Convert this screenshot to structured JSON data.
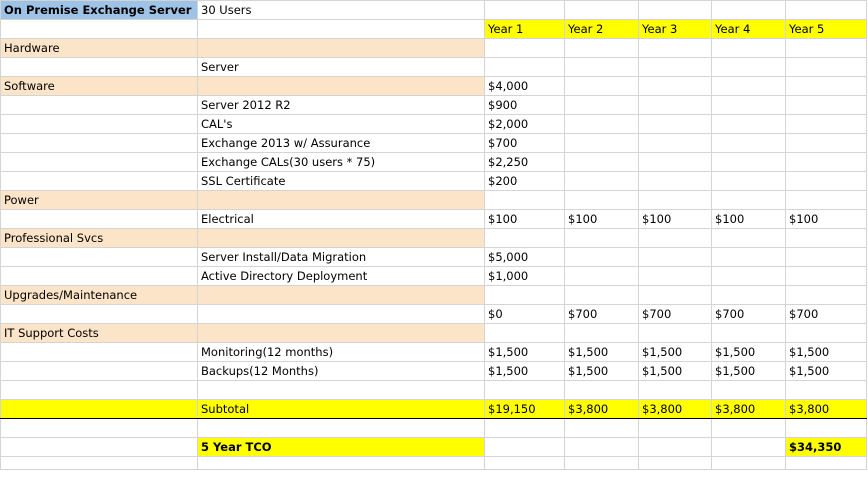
{
  "sheet": {
    "title": "On Premise Exchange Server",
    "users": "30 Users",
    "years": [
      "Year 1",
      "Year 2",
      "Year 3",
      "Year 4",
      "Year 5"
    ],
    "sections": {
      "hardware": "Hardware",
      "software": "Software",
      "power": "Power",
      "professional": "Professional Svcs",
      "upgrades": "Upgrades/Maintenance",
      "it_support": "IT Support Costs"
    },
    "items": {
      "server": "Server",
      "server2012": "Server 2012 R2",
      "cals": "CAL's",
      "exchange2013": "Exchange 2013 w/ Assurance",
      "exchange_cals": "Exchange CALs(30 users * 75)",
      "ssl": "SSL Certificate",
      "electrical": "Electrical",
      "install": " Server Install/Data Migration",
      "ad": "Active Directory Deployment",
      "monitoring": "Monitoring(12 months)",
      "backups": "Backups(12 Months)",
      "subtotal": "Subtotal",
      "tco": "5 Year TCO"
    },
    "values": {
      "software_y1": "$4,000",
      "server2012_y1": "$900",
      "cals_y1": "$2,000",
      "exchange2013_y1": "$700",
      "exchange_cals_y1": "$2,250",
      "ssl_y1": "$200",
      "electrical": [
        "$100",
        "$100",
        "$100",
        "$100",
        "$100"
      ],
      "install_y1": "$5,000",
      "ad_y1": "$1,000",
      "upgrades": [
        "$0",
        "$700",
        "$700",
        "$700",
        "$700"
      ],
      "monitoring": [
        "$1,500",
        "$1,500",
        "$1,500",
        "$1,500",
        "$1,500"
      ],
      "backups": [
        "$1,500",
        "$1,500",
        "$1,500",
        "$1,500",
        "$1,500"
      ],
      "subtotal": [
        "$19,150",
        "$3,800",
        "$3,800",
        "$3,800",
        "$3,800"
      ],
      "tco_y5": "$34,350"
    }
  }
}
